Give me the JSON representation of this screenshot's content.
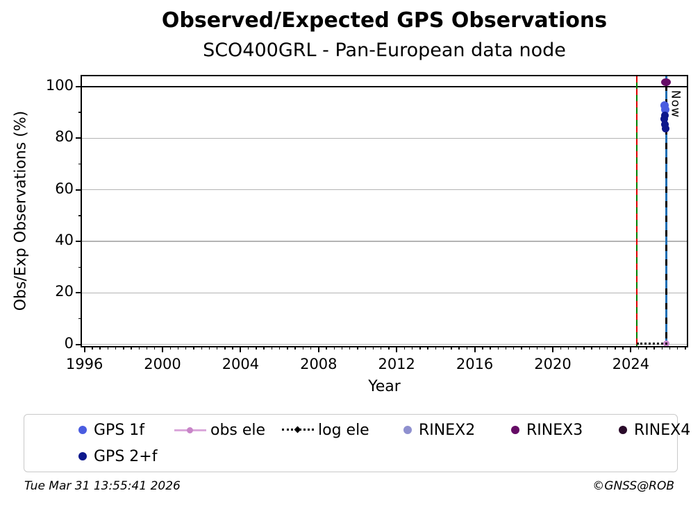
{
  "title": "Observed/Expected GPS Observations",
  "subtitle": "SCO400GRL - Pan-European data node",
  "footer": {
    "timestamp": "Tue Mar 31 13:55:41 2026",
    "credit": "©GNSS@ROB"
  },
  "chart_data": {
    "type": "scatter",
    "title": "Observed/Expected GPS Observations",
    "subtitle": "SCO400GRL - Pan-European data node",
    "xlabel": "Year",
    "ylabel": "Obs/Exp Observations (%)",
    "xlim": [
      1995.87,
      2026.87
    ],
    "ylim": [
      -0.6,
      104
    ],
    "x_major_ticks": [
      1996,
      2000,
      2004,
      2008,
      2012,
      2016,
      2020,
      2024
    ],
    "x_minor_step": 0.4,
    "y_major_ticks": [
      0,
      20,
      40,
      60,
      80,
      100
    ],
    "y_minor_step": 10,
    "grid": "horizontal-major-only",
    "grid_color": "#b4b4b4",
    "hline": {
      "value": 100,
      "color": "#000000"
    },
    "vlines": [
      {
        "name": "data-start-line",
        "year": 2024.3,
        "style": "green-solid-red-dashed",
        "colors": [
          "#007f00",
          "#dd0000"
        ]
      },
      {
        "name": "now-line",
        "year": 2025.82,
        "style": "black-solid-blue-dashed",
        "colors": [
          "#000000",
          "#1f6fb4"
        ],
        "label": "Now"
      }
    ],
    "series": [
      {
        "name": "GPS 1f",
        "marker": "circle",
        "size": 12,
        "color": "#4a5ce0",
        "points": [
          {
            "x": 2025.73,
            "y": 92.8
          },
          {
            "x": 2025.75,
            "y": 91.0
          }
        ]
      },
      {
        "name": "GPS 2+f",
        "marker": "circle",
        "size": 11,
        "color": "#0d188c",
        "points": [
          {
            "x": 2025.74,
            "y": 88.7
          },
          {
            "x": 2025.73,
            "y": 87.5
          },
          {
            "x": 2025.76,
            "y": 85.2
          },
          {
            "x": 2025.78,
            "y": 83.6
          }
        ]
      },
      {
        "name": "obs ele",
        "marker": "circle",
        "size": 9,
        "color": "#c885c8",
        "line_color": "#dba8db",
        "points": [
          {
            "x": 2025.82,
            "y": 0.3
          }
        ]
      },
      {
        "name": "log ele",
        "marker": "dotted-line",
        "color": "#000000",
        "segments": [
          {
            "x1": 2024.3,
            "x2": 2025.88,
            "y": 0.3
          }
        ]
      },
      {
        "name": "RINEX2",
        "marker": "circle",
        "size": 11,
        "color": "#8f90cf",
        "points": []
      },
      {
        "name": "RINEX3",
        "marker": "ellipse",
        "size": 14,
        "color": "#650b65",
        "points": [
          {
            "x": 2025.82,
            "y": 101.8
          }
        ]
      },
      {
        "name": "RINEX4",
        "marker": "circle",
        "size": 11,
        "color": "#2a0b2a",
        "points": []
      }
    ],
    "legend_position": "below-axes"
  },
  "legend": {
    "items": [
      {
        "label": "GPS 1f",
        "marker": "dot",
        "color": "#4a5ce0",
        "row": 1,
        "slot": 0
      },
      {
        "label": "obs ele",
        "marker": "line-dot",
        "color": "#c885c8",
        "line_color": "#dba8db",
        "row": 1,
        "slot": 1
      },
      {
        "label": "log ele",
        "marker": "dotted-diamond",
        "color": "#000000",
        "row": 1,
        "slot": 2
      },
      {
        "label": "RINEX2",
        "marker": "dot",
        "color": "#8f90cf",
        "row": 1,
        "slot": 3
      },
      {
        "label": "RINEX3",
        "marker": "dot",
        "color": "#650b65",
        "row": 1,
        "slot": 4
      },
      {
        "label": "RINEX4",
        "marker": "dot",
        "color": "#2a0b2a",
        "row": 1,
        "slot": 5
      },
      {
        "label": "GPS 2+f",
        "marker": "dot",
        "color": "#0d188c",
        "row": 2,
        "slot": 0
      }
    ]
  }
}
